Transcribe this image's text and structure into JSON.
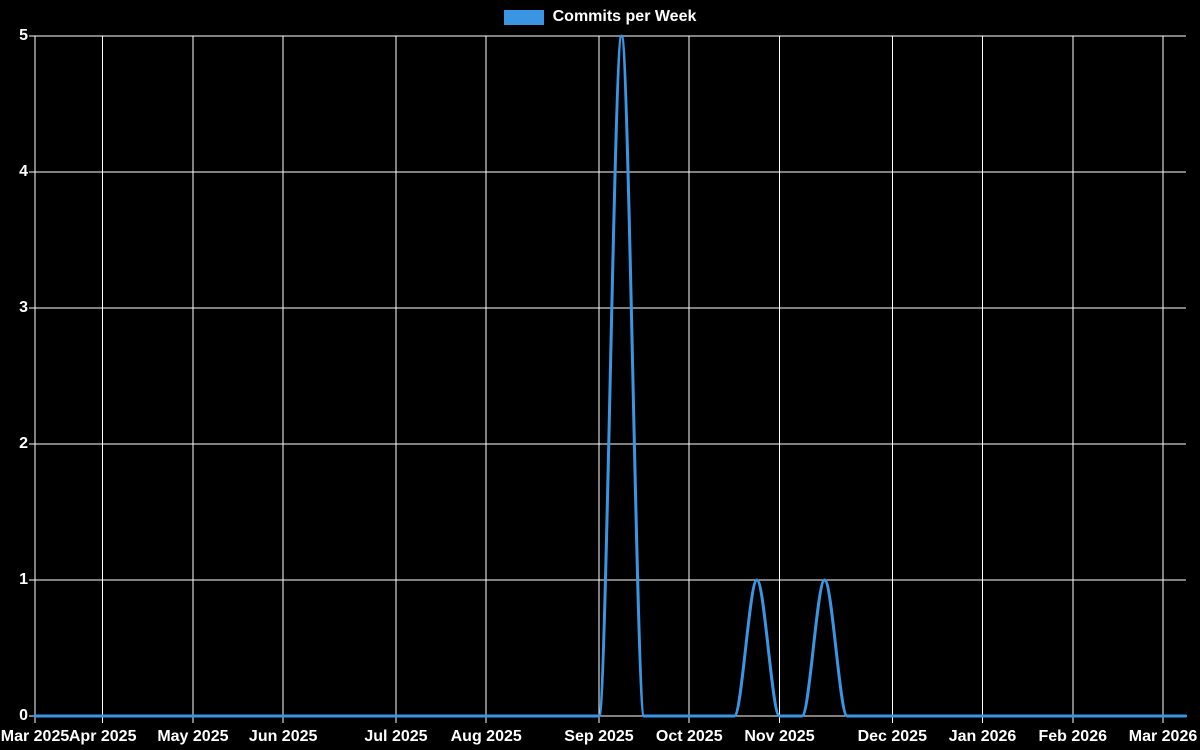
{
  "page": {
    "background": "#000000",
    "text_color": "#ffffff"
  },
  "legend": {
    "label": "Commits per Week",
    "swatch_color": "#3a96e2"
  },
  "chart_data": {
    "type": "line",
    "title": "Commits per Week",
    "background": "#000000",
    "grid": true,
    "grid_color": "#ffffff",
    "text_color": "#ffffff",
    "legend_position": "top",
    "x_unit": "week",
    "xlabel": "",
    "ylabel": "",
    "ylim": [
      0,
      5
    ],
    "y_ticks": [
      0,
      1,
      2,
      3,
      4,
      5
    ],
    "x_ticks": [
      {
        "label": "Mar 2025",
        "week": 0
      },
      {
        "label": "Apr 2025",
        "week": 3
      },
      {
        "label": "May 2025",
        "week": 7
      },
      {
        "label": "Jun 2025",
        "week": 11
      },
      {
        "label": "Jul 2025",
        "week": 16
      },
      {
        "label": "Aug 2025",
        "week": 20
      },
      {
        "label": "Sep 2025",
        "week": 25
      },
      {
        "label": "Oct 2025",
        "week": 29
      },
      {
        "label": "Nov 2025",
        "week": 33
      },
      {
        "label": "Dec 2025",
        "week": 38
      },
      {
        "label": "Jan 2026",
        "week": 42
      },
      {
        "label": "Feb 2026",
        "week": 46
      },
      {
        "label": "Mar 2026",
        "week": 50
      }
    ],
    "series": [
      {
        "name": "Commits per Week",
        "color": "#3a96e2",
        "line_width": 3,
        "interpolation": "monotone",
        "values": [
          0,
          0,
          0,
          0,
          0,
          0,
          0,
          0,
          0,
          0,
          0,
          0,
          0,
          0,
          0,
          0,
          0,
          0,
          0,
          0,
          0,
          0,
          0,
          0,
          0,
          0,
          5,
          0,
          0,
          0,
          0,
          0,
          1,
          0,
          0,
          1,
          0,
          0,
          0,
          0,
          0,
          0,
          0,
          0,
          0,
          0,
          0,
          0,
          0,
          0,
          0,
          0
        ]
      }
    ]
  }
}
